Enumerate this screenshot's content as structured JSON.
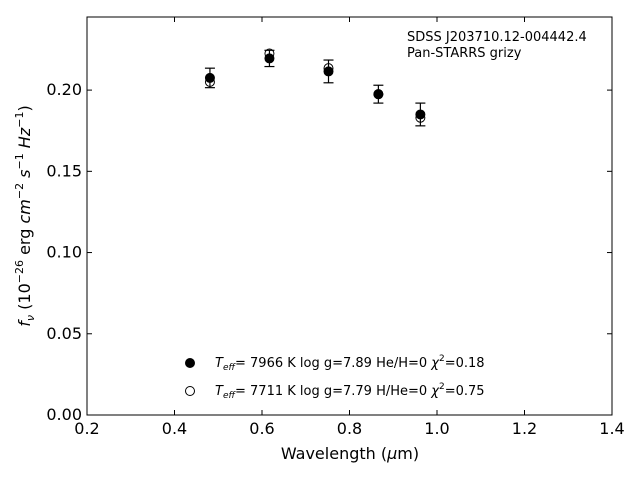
{
  "chart_data": {
    "type": "scatter",
    "title": "",
    "annotation": [
      "SDSS J203710.12-004442.4",
      "Pan-STARRS grizy"
    ],
    "xlabel_parts": [
      "Wavelength (",
      "μ",
      "m)"
    ],
    "ylabel_parts": [
      "f",
      "ν",
      " (10",
      "−26",
      " erg ",
      "cm",
      "−2",
      " s",
      "−1",
      " Hz",
      "−1",
      ")"
    ],
    "xlim": [
      0.2,
      1.4
    ],
    "ylim": [
      0.0,
      0.245
    ],
    "xticks": [
      "0.2",
      "0.4",
      "0.6",
      "0.8",
      "1.0",
      "1.2",
      "1.4"
    ],
    "yticks": [
      "0.00",
      "0.05",
      "0.10",
      "0.15",
      "0.20"
    ],
    "grid": false,
    "legend_position": "lower-center",
    "series": [
      {
        "marker": "filled-circle",
        "color": "#000000",
        "label_parts": [
          "T",
          "eff",
          "=  7966 K  log g=7.89  He/H=0  ",
          "χ",
          "2",
          "=0.18"
        ],
        "points": [
          {
            "x": 0.481,
            "y": 0.2075,
            "err": 0.006
          },
          {
            "x": 0.617,
            "y": 0.2195,
            "err": 0.005
          },
          {
            "x": 0.752,
            "y": 0.2115,
            "err": 0.007
          },
          {
            "x": 0.866,
            "y": 0.1975,
            "err": 0.0055
          },
          {
            "x": 0.962,
            "y": 0.185,
            "err": 0.007
          }
        ]
      },
      {
        "marker": "open-circle",
        "color": "#000000",
        "label_parts": [
          "T",
          "eff",
          "=  7711 K  log g=7.79  H/He=0  ",
          "χ",
          "2",
          "=0.75"
        ],
        "points": [
          {
            "x": 0.481,
            "y": 0.205
          },
          {
            "x": 0.617,
            "y": 0.2225
          },
          {
            "x": 0.752,
            "y": 0.2135
          },
          {
            "x": 0.866,
            "y": 0.1975
          },
          {
            "x": 0.962,
            "y": 0.183
          }
        ]
      }
    ]
  }
}
